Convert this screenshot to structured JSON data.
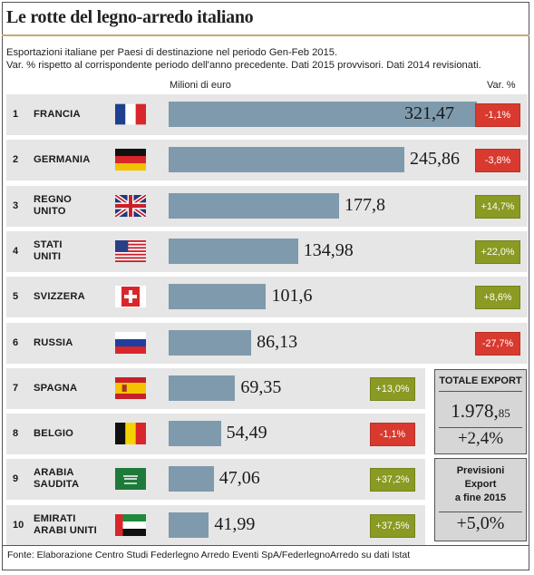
{
  "title": "Le rotte del legno-arredo italiano",
  "subtitle_line1": "Esportazioni italiane per Paesi di destinazione nel periodo Gen-Feb 2015.",
  "subtitle_line2": "Var. % rispetto al corrispondente periodo dell'anno precedente.  Dati 2015 provvisori. Dati 2014 revisionati.",
  "unit_label": "Milioni di euro",
  "var_label": "Var. %",
  "source": "Fonte: Elaborazione Centro Studi Federlegno Arredo Eventi SpA/FederlegnoArredo su dati Istat",
  "colors": {
    "bar": "#7f9aac",
    "negative": "#d93a2f",
    "positive": "#8a9a22",
    "row_bg": "#e6e6e6"
  },
  "chart_data": {
    "type": "bar",
    "orientation": "horizontal",
    "categories": [
      "1",
      "2",
      "3",
      "4",
      "5",
      "6",
      "7",
      "8",
      "9",
      "10"
    ],
    "countries": [
      "FRANCIA",
      "GERMANIA",
      "REGNO\nUNITO",
      "STATI\nUNITI",
      "SVIZZERA",
      "RUSSIA",
      "SPAGNA",
      "BELGIO",
      "ARABIA\nSAUDITA",
      "EMIRATI\nARABI UNITI"
    ],
    "values": [
      321.47,
      245.86,
      177.8,
      134.98,
      101.6,
      86.13,
      69.35,
      54.49,
      47.06,
      41.99
    ],
    "value_labels": [
      "321,47",
      "245,86",
      "177,8",
      "134,98",
      "101,6",
      "86,13",
      "69,35",
      "54,49",
      "47,06",
      "41,99"
    ],
    "var_pct": [
      -1.1,
      -3.8,
      14.7,
      22.0,
      8.6,
      -27.7,
      13.0,
      -1.1,
      37.2,
      37.5
    ],
    "var_labels": [
      "-1,1%",
      "-3,8%",
      "+14,7%",
      "+22,0%",
      "+8,6%",
      "-27,7%",
      "+13,0%",
      "-1,1%",
      "+37,2%",
      "+37,5%"
    ],
    "flags": [
      "france-flag",
      "germany-flag",
      "uk-flag",
      "usa-flag",
      "switzerland-flag",
      "russia-flag",
      "spain-flag",
      "belgium-flag",
      "saudi-flag",
      "uae-flag"
    ],
    "xlabel": "Milioni di euro",
    "xlim": [
      0,
      321.47
    ]
  },
  "total_export": {
    "label": "TOTALE EXPORT",
    "value_main": "1.978,",
    "value_dec": "85",
    "var": "+2,4%"
  },
  "forecast": {
    "label": "Previsioni\nExport\na fine 2015",
    "value": "+5,0%"
  }
}
